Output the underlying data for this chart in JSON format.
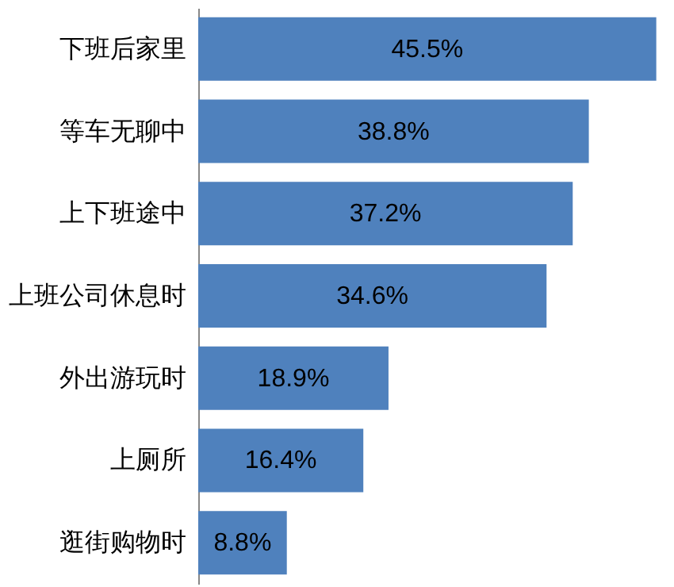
{
  "chart_data": {
    "type": "bar",
    "orientation": "horizontal",
    "categories": [
      "下班后家里",
      "等车无聊中",
      "上下班途中",
      "上班公司休息时",
      "外出游玩时",
      "上厕所",
      "逛街购物时"
    ],
    "values": [
      45.5,
      38.8,
      37.2,
      34.6,
      18.9,
      16.4,
      8.8
    ],
    "value_labels": [
      "45.5%",
      "38.8%",
      "37.2%",
      "34.6%",
      "18.9%",
      "16.4%",
      "8.8%"
    ],
    "color": "#4f81bd",
    "xlim": [
      0,
      46
    ],
    "tick_labels": "y"
  }
}
